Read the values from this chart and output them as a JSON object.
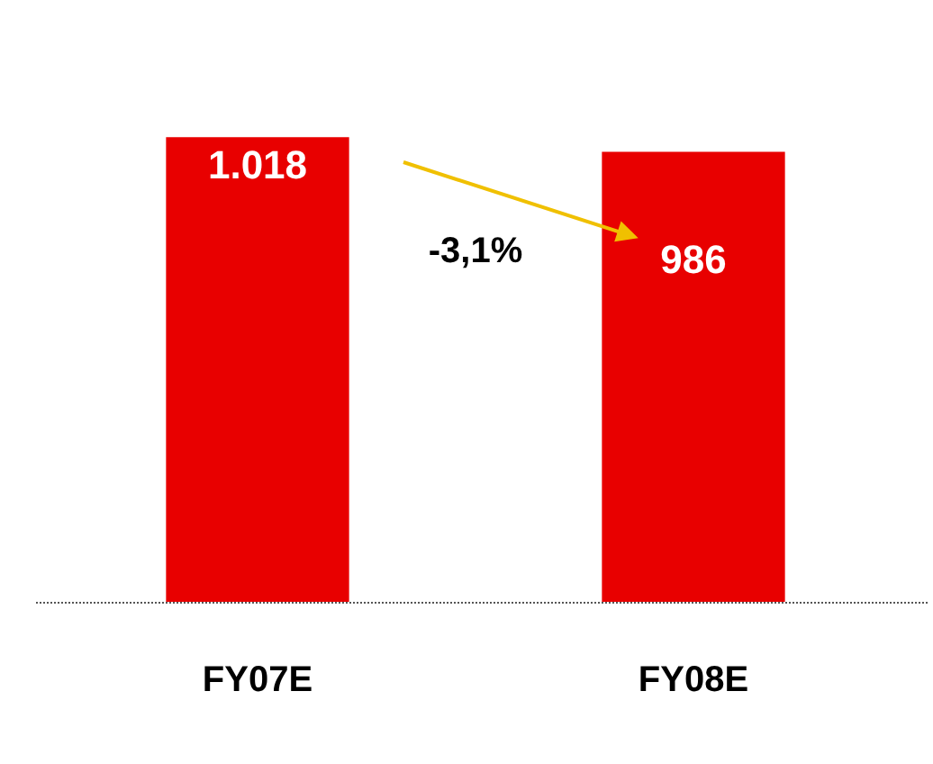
{
  "chart_data": {
    "type": "bar",
    "categories": [
      "FY07E",
      "FY08E"
    ],
    "values": [
      1018,
      986
    ],
    "value_labels": [
      "1.018",
      "986"
    ],
    "color": "#e80000",
    "annotations": [
      "-3,1%"
    ],
    "grid": false,
    "legend": false
  }
}
